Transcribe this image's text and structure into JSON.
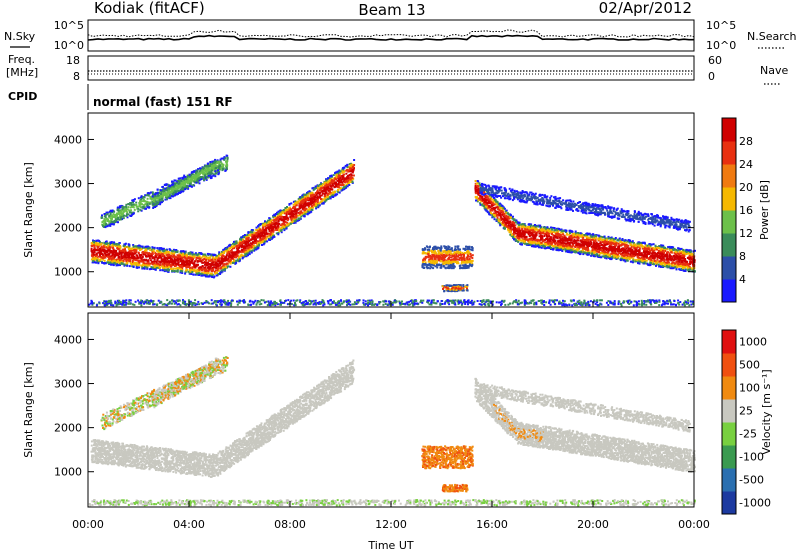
{
  "header": {
    "station": "Kodiak (fitACF)",
    "beam": "Beam 13",
    "date": "02/Apr/2012"
  },
  "status_panels": {
    "nsky_label": "N.Sky",
    "nsky_ticks": [
      "10^5",
      "10^0"
    ],
    "nsearch_label": "N.Search",
    "nsearch_ticks": [
      "10^5",
      "10^0"
    ],
    "freq_label_line1": "Freq.",
    "freq_label_line2": "[MHz]",
    "freq_ticks": [
      "18",
      "8"
    ],
    "nave_label": "Nave",
    "nave_ticks": [
      "60",
      "0"
    ],
    "cpid_label": "CPID",
    "cpid_text": "normal (fast) 151 RF"
  },
  "chart_data": [
    {
      "type": "heatmap",
      "name": "power",
      "ylabel": "Slant Range [km]",
      "yticks": [
        1000,
        2000,
        3000,
        4000
      ],
      "ylim": [
        200,
        4600
      ],
      "xlim_hours": [
        0,
        24
      ],
      "colorbar": {
        "label": "Power [dB]",
        "ticks": [
          "4",
          "8",
          "12",
          "16",
          "20",
          "24",
          "28"
        ],
        "colors": [
          "#1a1aff",
          "#2c4fa8",
          "#3a8c5a",
          "#6cc04a",
          "#f5b800",
          "#f07a10",
          "#e83010",
          "#d00000"
        ]
      },
      "features": [
        {
          "desc": "main F-region band",
          "t": [
            0,
            5,
            8,
            10.5
          ],
          "range_km": [
            1500,
            1150,
            2400,
            3300
          ]
        },
        {
          "desc": "evening band",
          "t": [
            15.5,
            17,
            20,
            24
          ],
          "range_km": [
            2900,
            1900,
            1500,
            1250
          ]
        }
      ]
    },
    {
      "type": "heatmap",
      "name": "velocity",
      "ylabel": "Slant Range [km]",
      "yticks": [
        1000,
        2000,
        3000,
        4000
      ],
      "ylim": [
        200,
        4600
      ],
      "xlim_hours": [
        0,
        24
      ],
      "colorbar": {
        "label": "Velocity [m s⁻¹]",
        "ticks": [
          "1000",
          "500",
          "100",
          "25",
          "-25",
          "-100",
          "-500",
          "-1000"
        ],
        "colors": [
          "#1c3aa0",
          "#2a6fb0",
          "#3a9a50",
          "#78d040",
          "#c8c8c0",
          "#f08a10",
          "#f05010",
          "#e01010"
        ]
      }
    }
  ],
  "x_axis": {
    "ticks": [
      "00:00",
      "04:00",
      "08:00",
      "12:00",
      "16:00",
      "20:00",
      "00:00"
    ],
    "label": "Time UT"
  }
}
